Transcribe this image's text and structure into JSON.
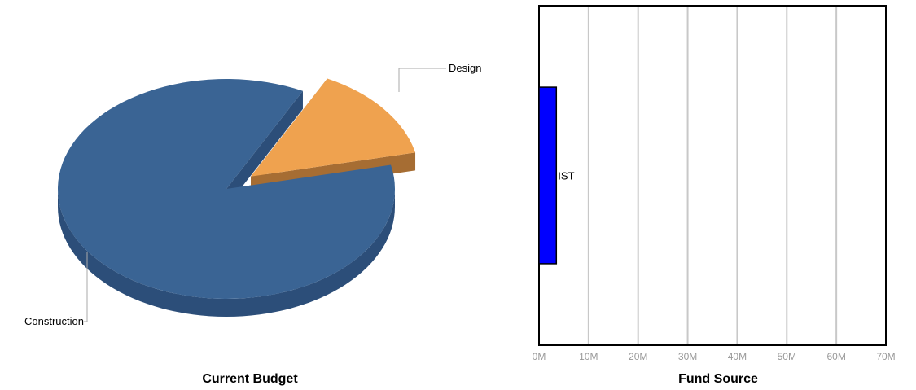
{
  "chart_data": [
    {
      "type": "pie",
      "title": "Current Budget",
      "slices": [
        {
          "label": "Construction",
          "value": 86,
          "color": "#3a6494",
          "side_color": "#2c4e79"
        },
        {
          "label": "Design",
          "value": 14,
          "color": "#efa24f",
          "side_color": "#a66d33"
        }
      ]
    },
    {
      "type": "bar",
      "orientation": "horizontal",
      "title": "Fund Source",
      "categories": [
        "IST"
      ],
      "values": [
        3500000
      ],
      "bar_color": "#0000ff",
      "xlim": [
        0,
        70000000
      ],
      "xticks": [
        "0M",
        "10M",
        "20M",
        "30M",
        "40M",
        "50M",
        "60M",
        "70M"
      ],
      "grid": true
    }
  ]
}
